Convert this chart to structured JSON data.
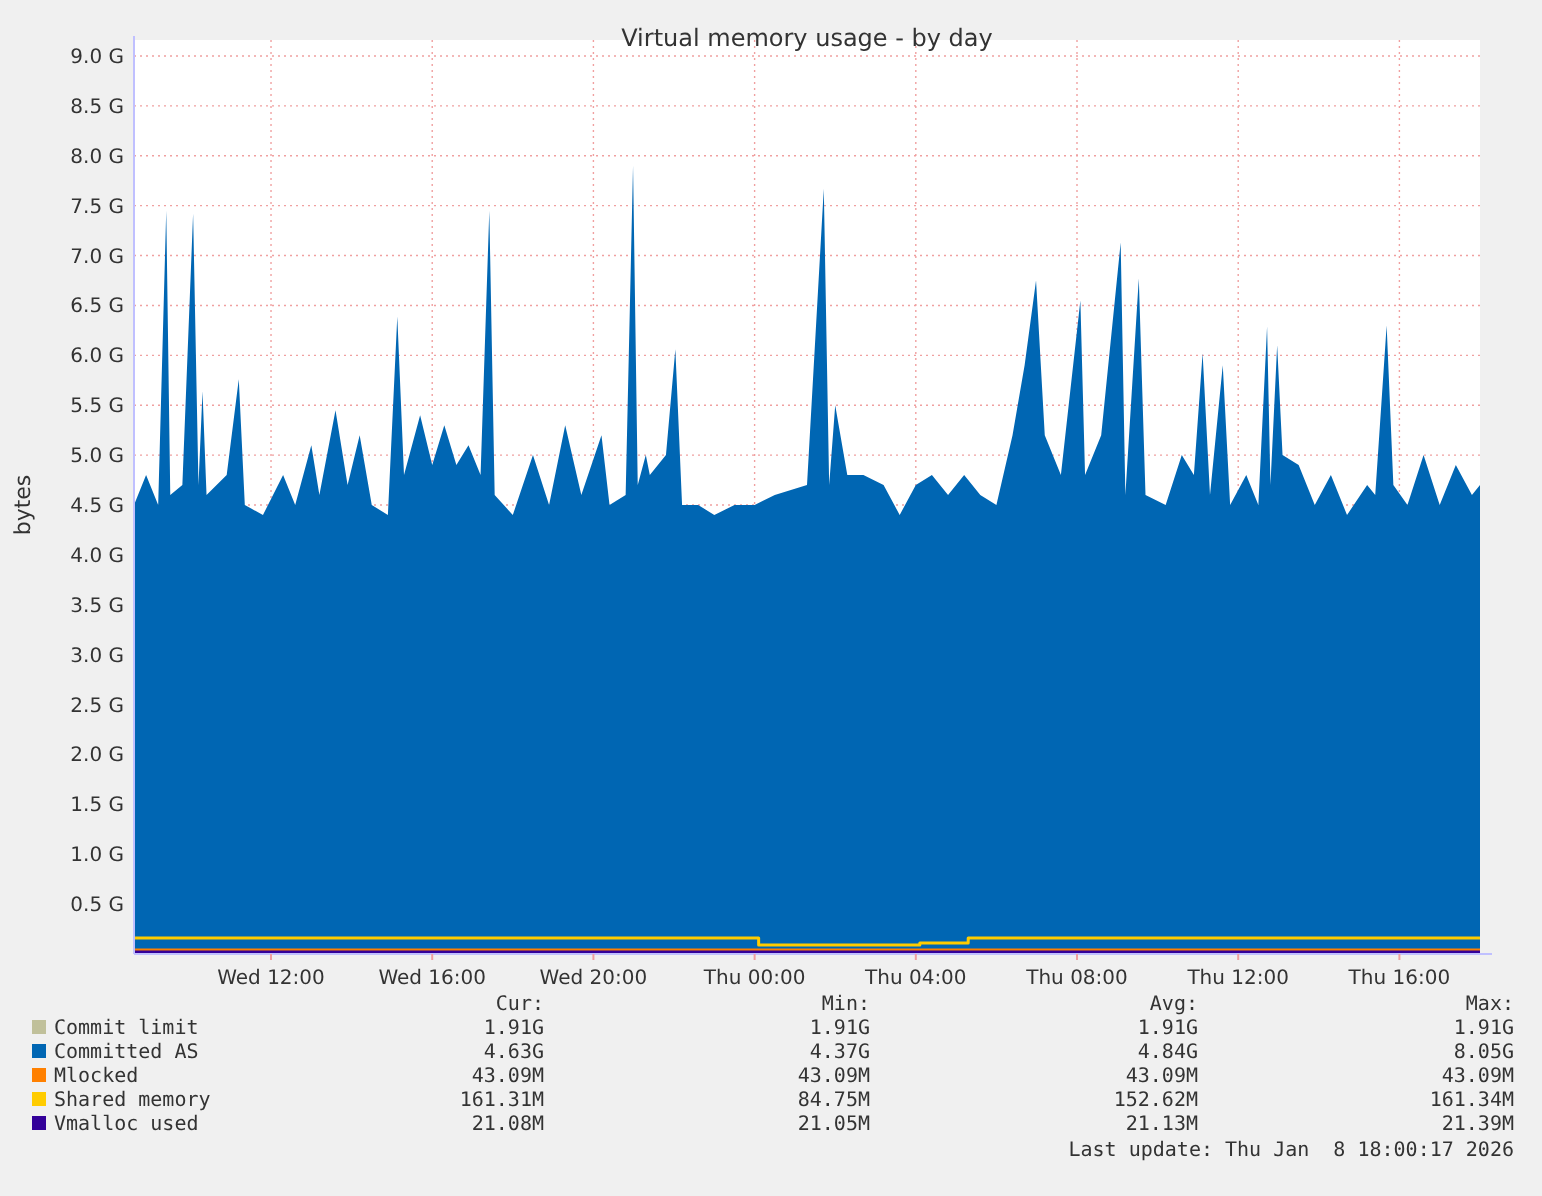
{
  "chart_data": {
    "type": "area",
    "title": "Virtual memory usage - by day",
    "ylabel": "bytes",
    "xlim": [
      "2026-01-07T08:36",
      "2026-01-08T18:00"
    ],
    "xticks": [
      {
        "value": "2026-01-07T12:00",
        "label": "Wed 12:00"
      },
      {
        "value": "2026-01-07T16:00",
        "label": "Wed 16:00"
      },
      {
        "value": "2026-01-07T20:00",
        "label": "Wed 20:00"
      },
      {
        "value": "2026-01-08T00:00",
        "label": "Thu 00:00"
      },
      {
        "value": "2026-01-08T04:00",
        "label": "Thu 04:00"
      },
      {
        "value": "2026-01-08T08:00",
        "label": "Thu 08:00"
      },
      {
        "value": "2026-01-08T12:00",
        "label": "Thu 12:00"
      },
      {
        "value": "2026-01-08T16:00",
        "label": "Thu 16:00"
      }
    ],
    "ylim": [
      0,
      9.0
    ],
    "yticks": [
      {
        "value": 0.5,
        "label": "0.5 G"
      },
      {
        "value": 1,
        "label": "1.0 G"
      },
      {
        "value": 1.5,
        "label": "1.5 G"
      },
      {
        "value": 2,
        "label": "2.0 G"
      },
      {
        "value": 2.5,
        "label": "2.5 G"
      },
      {
        "value": 3,
        "label": "3.0 G"
      },
      {
        "value": 3.5,
        "label": "3.5 G"
      },
      {
        "value": 4,
        "label": "4.0 G"
      },
      {
        "value": 4.5,
        "label": "4.5 G"
      },
      {
        "value": 5,
        "label": "5.0 G"
      },
      {
        "value": 5.5,
        "label": "5.5 G"
      },
      {
        "value": 6,
        "label": "6.0 G"
      },
      {
        "value": 6.5,
        "label": "6.5 G"
      },
      {
        "value": 7,
        "label": "7.0 G"
      },
      {
        "value": 7.5,
        "label": "7.5 G"
      },
      {
        "value": 8,
        "label": "8.0 G"
      },
      {
        "value": 8.5,
        "label": "8.5 G"
      },
      {
        "value": 9,
        "label": "9.0 G"
      }
    ],
    "grid": true,
    "legend": "bottom",
    "series": [
      {
        "name": "Commit limit",
        "type": "line",
        "color": "#c0c09a"
      },
      {
        "name": "Committed AS",
        "color": "#0066b3",
        "x": [
          "2026-01-07T08:36",
          "2026-01-07T08:54",
          "2026-01-07T09:12",
          "2026-01-07T09:24",
          "2026-01-07T09:30",
          "2026-01-07T09:48",
          "2026-01-07T10:04",
          "2026-01-07T10:12",
          "2026-01-07T10:18",
          "2026-01-07T10:24",
          "2026-01-07T10:54",
          "2026-01-07T11:12",
          "2026-01-07T11:21",
          "2026-01-07T11:48",
          "2026-01-07T12:18",
          "2026-01-07T12:36",
          "2026-01-07T13:00",
          "2026-01-07T13:12",
          "2026-01-07T13:36",
          "2026-01-07T13:54",
          "2026-01-07T14:12",
          "2026-01-07T14:30",
          "2026-01-07T14:54",
          "2026-01-07T15:08",
          "2026-01-07T15:18",
          "2026-01-07T15:42",
          "2026-01-07T16:00",
          "2026-01-07T16:18",
          "2026-01-07T16:36",
          "2026-01-07T16:54",
          "2026-01-07T17:12",
          "2026-01-07T17:25",
          "2026-01-07T17:33",
          "2026-01-07T18:00",
          "2026-01-07T18:30",
          "2026-01-07T18:54",
          "2026-01-07T19:18",
          "2026-01-07T19:42",
          "2026-01-07T20:12",
          "2026-01-07T20:24",
          "2026-01-07T20:48",
          "2026-01-07T20:59",
          "2026-01-07T21:06",
          "2026-01-07T21:18",
          "2026-01-07T21:24",
          "2026-01-07T21:48",
          "2026-01-07T22:02",
          "2026-01-07T22:12",
          "2026-01-07T22:36",
          "2026-01-07T23:00",
          "2026-01-07T23:30",
          "2026-01-08T00:00",
          "2026-01-08T00:30",
          "2026-01-08T01:18",
          "2026-01-08T01:43",
          "2026-01-08T01:51",
          "2026-01-08T02:00",
          "2026-01-08T02:18",
          "2026-01-08T02:42",
          "2026-01-08T03:12",
          "2026-01-08T03:36",
          "2026-01-08T04:00",
          "2026-01-08T04:24",
          "2026-01-08T04:48",
          "2026-01-08T05:12",
          "2026-01-08T05:36",
          "2026-01-08T06:00",
          "2026-01-08T06:24",
          "2026-01-08T06:42",
          "2026-01-08T06:59",
          "2026-01-08T07:12",
          "2026-01-08T07:36",
          "2026-01-08T08:05",
          "2026-01-08T08:12",
          "2026-01-08T08:36",
          "2026-01-08T09:05",
          "2026-01-08T09:12",
          "2026-01-08T09:32",
          "2026-01-08T09:42",
          "2026-01-08T10:12",
          "2026-01-08T10:36",
          "2026-01-08T10:54",
          "2026-01-08T11:07",
          "2026-01-08T11:18",
          "2026-01-08T11:37",
          "2026-01-08T11:48",
          "2026-01-08T12:12",
          "2026-01-08T12:30",
          "2026-01-08T12:43",
          "2026-01-08T12:48",
          "2026-01-08T12:58",
          "2026-01-08T13:06",
          "2026-01-08T13:30",
          "2026-01-08T13:54",
          "2026-01-08T14:18",
          "2026-01-08T14:42",
          "2026-01-08T15:12",
          "2026-01-08T15:24",
          "2026-01-08T15:41",
          "2026-01-08T15:51",
          "2026-01-08T16:12",
          "2026-01-08T16:36",
          "2026-01-08T17:00",
          "2026-01-08T17:24",
          "2026-01-08T17:48",
          "2026-01-08T18:00"
        ],
        "values": [
          4.5,
          4.8,
          4.5,
          7.45,
          4.6,
          4.7,
          7.42,
          4.7,
          5.64,
          4.6,
          4.8,
          5.76,
          4.5,
          4.4,
          4.8,
          4.5,
          5.1,
          4.6,
          5.45,
          4.7,
          5.2,
          4.5,
          4.4,
          6.39,
          4.8,
          5.4,
          4.9,
          5.3,
          4.9,
          5.1,
          4.8,
          7.45,
          4.6,
          4.4,
          5.0,
          4.5,
          5.3,
          4.6,
          5.2,
          4.5,
          4.6,
          7.9,
          4.7,
          5.0,
          4.8,
          5.0,
          6.06,
          4.5,
          4.5,
          4.4,
          4.5,
          4.5,
          4.6,
          4.7,
          7.67,
          4.7,
          5.5,
          4.8,
          4.8,
          4.7,
          4.4,
          4.7,
          4.8,
          4.6,
          4.8,
          4.6,
          4.5,
          5.2,
          5.9,
          6.75,
          5.2,
          4.8,
          6.55,
          4.8,
          5.2,
          7.13,
          4.6,
          6.77,
          4.6,
          4.5,
          5.0,
          4.8,
          6.02,
          4.6,
          5.9,
          4.5,
          4.8,
          4.5,
          6.29,
          4.7,
          6.1,
          5.0,
          4.9,
          4.5,
          4.8,
          4.4,
          4.7,
          4.6,
          6.3,
          4.7,
          4.5,
          5.0,
          4.5,
          4.9,
          4.6,
          4.7
        ]
      },
      {
        "name": "Mlocked",
        "type": "line",
        "color": "#ff8000",
        "x": [
          "2026-01-07T08:36",
          "2026-01-08T18:00"
        ],
        "values": [
          0.04,
          0.04
        ]
      },
      {
        "name": "Shared memory",
        "type": "step",
        "color": "#ffcc00",
        "x": [
          "2026-01-07T08:36",
          "2026-01-08T00:00",
          "2026-01-08T00:06",
          "2026-01-08T04:00",
          "2026-01-08T04:06",
          "2026-01-08T05:12",
          "2026-01-08T05:18",
          "2026-01-08T18:00"
        ],
        "values": [
          0.16,
          0.16,
          0.09,
          0.09,
          0.11,
          0.11,
          0.16,
          0.16
        ]
      },
      {
        "name": "Vmalloc used",
        "type": "line",
        "color": "#330099",
        "x": [
          "2026-01-07T08:36",
          "2026-01-08T18:00"
        ],
        "values": [
          0.02,
          0.02
        ]
      }
    ],
    "annotations": [
      "Cur:",
      "Min:",
      "Avg:",
      "Max:",
      "1.91G",
      "1.91G",
      "1.91G",
      "1.91G",
      "4.63G",
      "4.37G",
      "4.84G",
      "8.05G",
      "43.09M",
      "43.09M",
      "43.09M",
      "43.09M",
      "161.31M",
      "84.75M",
      "152.62M",
      "161.34M",
      "21.08M",
      "21.05M",
      "21.13M",
      "21.39M",
      "Last update: Thu Jan  8 18:00:17 2026"
    ]
  }
}
